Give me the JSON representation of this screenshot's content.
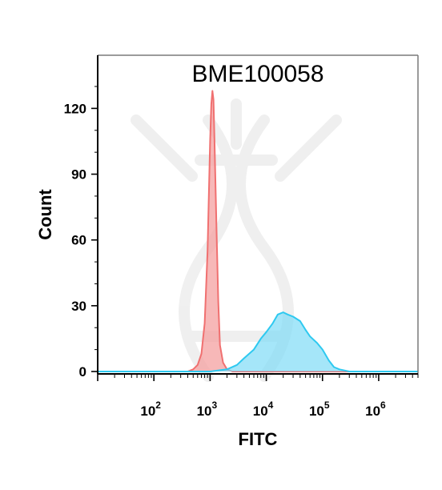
{
  "chart_data": {
    "type": "area",
    "title": "BME100058",
    "xlabel": "FITC",
    "ylabel": "Count",
    "x_scale": "log",
    "xlim": [
      10,
      5000000
    ],
    "ylim": [
      0,
      135
    ],
    "x_ticks": [
      {
        "value": 100,
        "base": "10",
        "exp": "2"
      },
      {
        "value": 1000,
        "base": "10",
        "exp": "3"
      },
      {
        "value": 10000,
        "base": "10",
        "exp": "4"
      },
      {
        "value": 100000,
        "base": "10",
        "exp": "5"
      },
      {
        "value": 1000000,
        "base": "10",
        "exp": "6"
      }
    ],
    "y_ticks": [
      0,
      30,
      60,
      90,
      120
    ],
    "grid": false,
    "legend": "none",
    "series": [
      {
        "color": "#f07070",
        "fill": "#f4a0a0",
        "x": [
          10,
          400,
          500,
          600,
          700,
          800,
          900,
          950,
          1000,
          1050,
          1100,
          1150,
          1200,
          1300,
          1400,
          1500,
          1700,
          2000,
          2500,
          5000000
        ],
        "y": [
          0,
          0,
          1,
          3,
          8,
          22,
          55,
          80,
          105,
          122,
          128,
          124,
          105,
          65,
          32,
          12,
          4,
          1,
          0,
          0
        ]
      },
      {
        "color": "#2ec9f0",
        "fill": "#7fdcf6",
        "x": [
          10,
          1000,
          2000,
          3000,
          4000,
          6000,
          8000,
          10000,
          13000,
          16000,
          20000,
          24000,
          30000,
          40000,
          50000,
          60000,
          80000,
          100000,
          130000,
          160000,
          200000,
          300000,
          5000000
        ],
        "y": [
          0,
          0,
          1,
          3,
          6,
          10,
          15,
          18,
          22,
          26,
          27,
          26,
          25,
          23,
          19,
          16,
          13,
          10,
          5,
          2,
          1,
          0,
          0
        ]
      }
    ]
  }
}
